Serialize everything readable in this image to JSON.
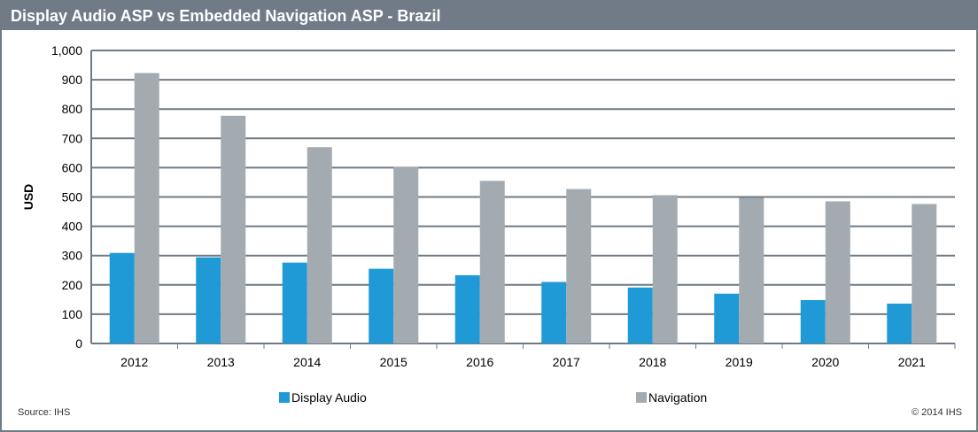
{
  "chart_data": {
    "type": "bar",
    "title": "Display Audio ASP vs Embedded Navigation ASP - Brazil",
    "xlabel": "",
    "ylabel": "USD",
    "ylim": [
      0,
      1000
    ],
    "yticks": [
      0,
      100,
      200,
      300,
      400,
      500,
      600,
      700,
      800,
      900,
      1000
    ],
    "ytick_labels": [
      "0",
      "100",
      "200",
      "300",
      "400",
      "500",
      "600",
      "700",
      "800",
      "900",
      "1,000"
    ],
    "grid": true,
    "legend_position": "bottom",
    "categories": [
      "2012",
      "2013",
      "2014",
      "2015",
      "2016",
      "2017",
      "2018",
      "2019",
      "2020",
      "2021"
    ],
    "series": [
      {
        "name": "Display Audio",
        "color": "#1f9ad6",
        "values": [
          309,
          294,
          276,
          255,
          233,
          210,
          191,
          170,
          148,
          136
        ]
      },
      {
        "name": "Navigation",
        "color": "#a3abb1",
        "values": [
          923,
          777,
          670,
          603,
          555,
          527,
          506,
          497,
          485,
          476
        ]
      }
    ]
  },
  "footer": {
    "source": "Source: IHS",
    "copyright": "© 2014 IHS"
  }
}
